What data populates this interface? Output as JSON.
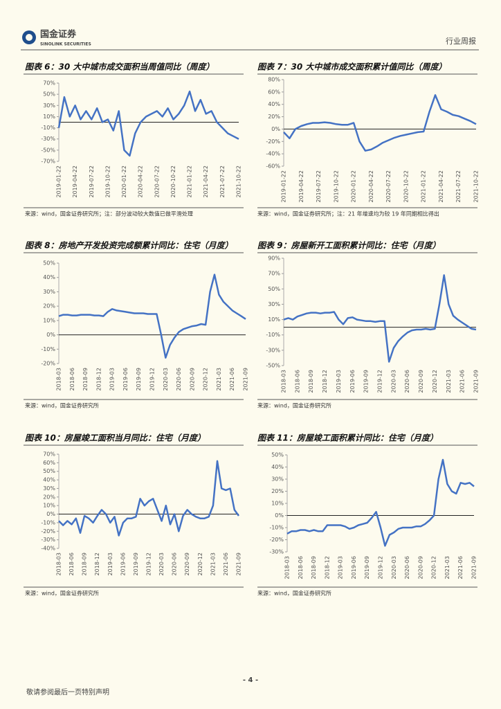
{
  "header": {
    "logo_cn": "国金证券",
    "logo_en": "SINOLINK SECURITIES",
    "report_type": "行业周报"
  },
  "footer": {
    "page": "- 4 -",
    "disclaimer": "敬请参阅最后一页特别声明"
  },
  "chart_data": [
    {
      "type": "line",
      "title": "图表 6：30 大中城市成交面积当周值同比（周度）",
      "source": "来源：wind，国金证券研究所；注：部分波动较大数值已做平滑处理",
      "color": "#4472c4",
      "categories": [
        "2019-01-22",
        null,
        null,
        "2019-04-22",
        null,
        null,
        "2019-07-22",
        null,
        null,
        "2019-10-22",
        null,
        null,
        "2020-01-22",
        null,
        null,
        "2020-04-22",
        null,
        null,
        "2020-07-22",
        null,
        null,
        "2020-10-22",
        null,
        null,
        "2021-01-22",
        null,
        null,
        "2021-04-22",
        null,
        null,
        "2021-07-22",
        null,
        null,
        "2021-10-22"
      ],
      "values": [
        -10,
        45,
        10,
        30,
        5,
        20,
        5,
        25,
        0,
        5,
        -15,
        20,
        -50,
        -60,
        -20,
        0,
        10,
        15,
        20,
        10,
        25,
        5,
        15,
        30,
        55,
        20,
        40,
        15,
        20,
        0,
        -10,
        -20,
        -25,
        -30
      ],
      "ylim": [
        -70,
        70
      ],
      "yticks": [
        {
          "value": 70,
          "label": "70%"
        },
        {
          "value": 50,
          "label": "50%"
        },
        {
          "value": 30,
          "label": "30%"
        },
        {
          "value": 10,
          "label": "10%"
        },
        {
          "value": -10,
          "label": "-10%"
        },
        {
          "value": -30,
          "label": "-30%"
        },
        {
          "value": -50,
          "label": "-50%"
        },
        {
          "value": -70,
          "label": "-70%"
        }
      ]
    },
    {
      "type": "line",
      "title": "图表 7：30 大中城市成交面积累计值同比（周度）",
      "source": "来源：wind，国金证券研究所；注：21 年增速均为较 19 年同期相比得出",
      "color": "#4472c4",
      "categories": [
        "2019-01-22",
        null,
        null,
        "2019-04-22",
        null,
        null,
        "2019-07-22",
        null,
        null,
        "2019-10-22",
        null,
        null,
        "2020-01-22",
        null,
        null,
        "2020-04-22",
        null,
        null,
        "2020-07-22",
        null,
        null,
        "2020-10-22",
        null,
        null,
        "2021-01-22",
        null,
        null,
        "2021-04-22",
        null,
        null,
        "2021-07-22",
        null,
        null,
        "2021-10-22"
      ],
      "values": [
        -5,
        -15,
        0,
        5,
        8,
        10,
        10,
        11,
        10,
        8,
        7,
        7,
        10,
        -20,
        -35,
        -33,
        -28,
        -22,
        -18,
        -14,
        -11,
        -9,
        -7,
        -5,
        -4,
        28,
        55,
        32,
        28,
        23,
        21,
        17,
        13,
        8
      ],
      "ylim": [
        -60,
        80
      ],
      "yticks": [
        {
          "value": 80,
          "label": "80%"
        },
        {
          "value": 60,
          "label": "60%"
        },
        {
          "value": 40,
          "label": "40%"
        },
        {
          "value": 20,
          "label": "20%"
        },
        {
          "value": 0,
          "label": "0%"
        },
        {
          "value": -20,
          "label": "-20%"
        },
        {
          "value": -40,
          "label": "-40%"
        },
        {
          "value": -60,
          "label": "-60%"
        }
      ]
    },
    {
      "type": "line",
      "title": "图表 8：房地产开发投资完成额累计同比：住宅（月度）",
      "source": "来源：wind，国金证券研究所",
      "color": "#4472c4",
      "categories": [
        "2018-03",
        null,
        null,
        "2018-06",
        null,
        null,
        "2018-09",
        null,
        null,
        "2018-12",
        null,
        null,
        "2019-03",
        null,
        null,
        "2019-06",
        null,
        null,
        "2019-09",
        null,
        null,
        "2019-12",
        null,
        null,
        "2020-03",
        null,
        null,
        "2020-06",
        null,
        null,
        "2020-09",
        null,
        null,
        "2020-12",
        null,
        null,
        "2021-03",
        null,
        null,
        "2021-06",
        null,
        null,
        "2021-09"
      ],
      "values": [
        13,
        14,
        14,
        13.5,
        13.5,
        14,
        14,
        14,
        13.5,
        13.5,
        13,
        16,
        18,
        17,
        16.5,
        16,
        15.5,
        15,
        15,
        15,
        14.5,
        14.5,
        14.5,
        0,
        -16,
        -7,
        -2,
        2,
        4,
        5,
        6,
        6.5,
        7.5,
        7,
        30,
        42,
        28,
        23,
        20,
        17,
        15,
        13,
        11
      ],
      "ylim": [
        -20,
        50
      ],
      "yticks": [
        {
          "value": 50,
          "label": "50%"
        },
        {
          "value": 40,
          "label": "40%"
        },
        {
          "value": 30,
          "label": "30%"
        },
        {
          "value": 20,
          "label": "20%"
        },
        {
          "value": 10,
          "label": "10%"
        },
        {
          "value": 0,
          "label": "0%"
        },
        {
          "value": -10,
          "label": "-10%"
        },
        {
          "value": -20,
          "label": "-20%"
        }
      ]
    },
    {
      "type": "line",
      "title": "图表 9：房屋新开工面积累计同比：住宅（月度）",
      "source": "来源：wind，国金证券研究所",
      "color": "#4472c4",
      "categories": [
        "2018-03",
        null,
        null,
        "2018-06",
        null,
        null,
        "2018-09",
        null,
        null,
        "2018-12",
        null,
        null,
        "2019-03",
        null,
        null,
        "2019-06",
        null,
        null,
        "2019-09",
        null,
        null,
        "2019-12",
        null,
        null,
        "2020-03",
        null,
        null,
        "2020-06",
        null,
        null,
        "2020-09",
        null,
        null,
        "2020-12",
        null,
        null,
        "2021-03",
        null,
        null,
        "2021-06",
        null,
        null,
        "2021-09"
      ],
      "values": [
        10,
        12,
        10,
        14,
        16,
        18,
        19,
        19,
        18,
        19,
        19,
        20,
        10,
        4,
        12,
        13,
        10,
        9,
        8,
        8,
        7,
        8,
        8,
        -45,
        -27,
        -18,
        -12,
        -7,
        -4,
        -3,
        -3,
        -2,
        -3,
        -2,
        30,
        68,
        30,
        15,
        10,
        6,
        2,
        -2,
        -3
      ],
      "ylim": [
        -50,
        90
      ],
      "yticks": [
        {
          "value": 90,
          "label": "90%"
        },
        {
          "value": 70,
          "label": "70%"
        },
        {
          "value": 50,
          "label": "50%"
        },
        {
          "value": 30,
          "label": "30%"
        },
        {
          "value": 10,
          "label": "10%"
        },
        {
          "value": -10,
          "label": "-10%"
        },
        {
          "value": -30,
          "label": "-30%"
        },
        {
          "value": -50,
          "label": "-50%"
        }
      ]
    },
    {
      "type": "line",
      "title": "图表 10：房屋竣工面积当月同比：住宅（月度）",
      "source": "来源：wind，国金证券研究所",
      "color": "#4472c4",
      "categories": [
        "2018-03",
        null,
        null,
        "2018-06",
        null,
        null,
        "2018-09",
        null,
        null,
        "2018-12",
        null,
        null,
        "2019-03",
        null,
        null,
        "2019-06",
        null,
        null,
        "2019-09",
        null,
        null,
        "2019-12",
        null,
        null,
        "2020-03",
        null,
        null,
        "2020-06",
        null,
        null,
        "2020-09",
        null,
        null,
        "2020-12",
        null,
        null,
        "2021-03",
        null,
        null,
        "2021-06",
        null,
        null,
        "2021-09"
      ],
      "values": [
        -8,
        -13,
        -8,
        -12,
        -5,
        -22,
        -2,
        -5,
        -10,
        -2,
        5,
        0,
        -10,
        -3,
        -25,
        -10,
        -5,
        -5,
        -3,
        18,
        10,
        15,
        18,
        5,
        -8,
        10,
        -12,
        0,
        -20,
        -2,
        5,
        0,
        -3,
        -5,
        -5,
        -3,
        10,
        62,
        30,
        28,
        30,
        5,
        -2
      ],
      "ylim": [
        -40,
        70
      ],
      "yticks": [
        {
          "value": 70,
          "label": "70%"
        },
        {
          "value": 60,
          "label": "60%"
        },
        {
          "value": 50,
          "label": "50%"
        },
        {
          "value": 40,
          "label": "40%"
        },
        {
          "value": 30,
          "label": "30%"
        },
        {
          "value": 20,
          "label": "20%"
        },
        {
          "value": 10,
          "label": "10%"
        },
        {
          "value": 0,
          "label": "0%"
        },
        {
          "value": -10,
          "label": "-10%"
        },
        {
          "value": -20,
          "label": "-20%"
        },
        {
          "value": -30,
          "label": "-30%"
        },
        {
          "value": -40,
          "label": "-40%"
        }
      ]
    },
    {
      "type": "line",
      "title": "图表 11：房屋竣工面积累计同比：住宅（月度）",
      "source": "来源：wind，国金证券研究所",
      "color": "#4472c4",
      "categories": [
        "2018-03",
        null,
        null,
        "2018-06",
        null,
        null,
        "2018-09",
        null,
        null,
        "2018-12",
        null,
        null,
        "2019-03",
        null,
        null,
        "2019-06",
        null,
        null,
        "2019-09",
        null,
        null,
        "2019-12",
        null,
        null,
        "2020-03",
        null,
        null,
        "2020-06",
        null,
        null,
        "2020-09",
        null,
        null,
        "2020-12",
        null,
        null,
        "2021-03",
        null,
        null,
        "2021-06",
        null,
        null,
        "2021-09"
      ],
      "values": [
        -15,
        -13,
        -13,
        -12,
        -12,
        -13,
        -12,
        -13,
        -13,
        -8,
        -8,
        -8,
        -8,
        -9,
        -11,
        -10,
        -8,
        -7,
        -6,
        -2,
        3,
        -10,
        -25,
        -16,
        -14,
        -11,
        -10,
        -10,
        -10,
        -9,
        -9,
        -7,
        -4,
        0,
        30,
        46,
        26,
        20,
        18,
        27,
        26,
        27,
        24
      ],
      "ylim": [
        -30,
        50
      ],
      "yticks": [
        {
          "value": 50,
          "label": "50%"
        },
        {
          "value": 40,
          "label": "40%"
        },
        {
          "value": 30,
          "label": "30%"
        },
        {
          "value": 20,
          "label": "20%"
        },
        {
          "value": 10,
          "label": "10%"
        },
        {
          "value": 0,
          "label": "0%"
        },
        {
          "value": -10,
          "label": "-10%"
        },
        {
          "value": -20,
          "label": "-20%"
        },
        {
          "value": -30,
          "label": "-30%"
        }
      ]
    }
  ]
}
